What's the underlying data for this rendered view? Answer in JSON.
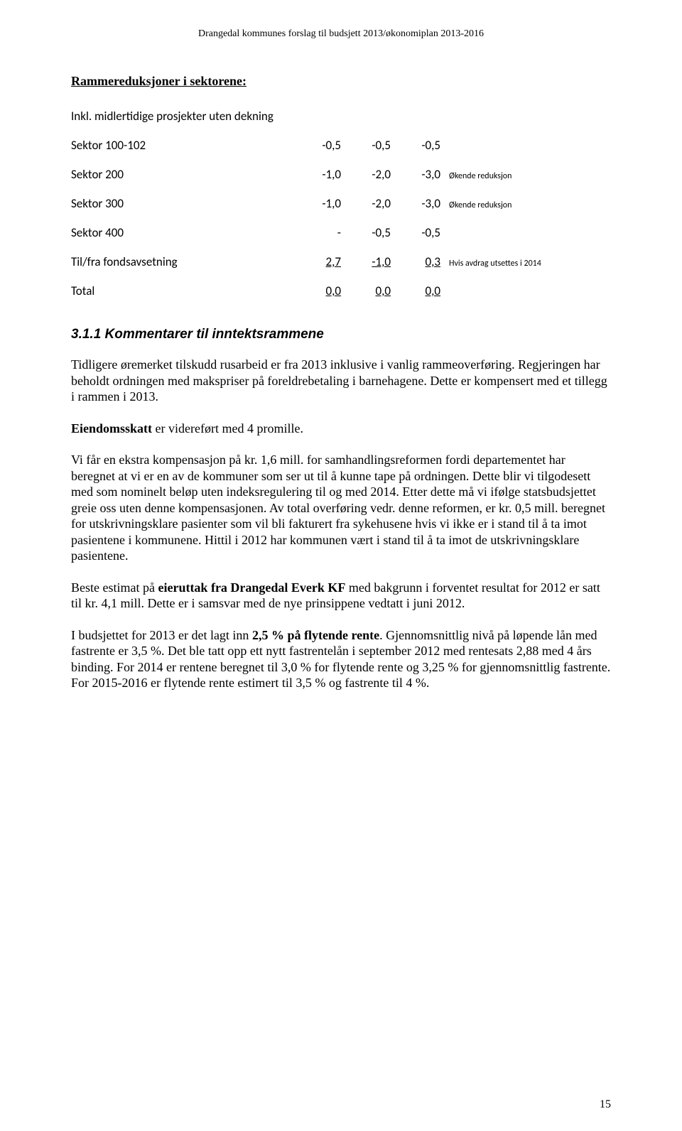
{
  "header": "Drangedal kommunes forslag til budsjett 2013/økonomiplan 2013-2016",
  "section_title": "Rammereduksjoner i sektorene:",
  "table": {
    "subtitle": "Inkl. midlertidige prosjekter uten dekning",
    "rows": [
      {
        "label": "Sektor 100-102",
        "c1": "-0,5",
        "c2": "-0,5",
        "c3": "-0,5",
        "note": ""
      },
      {
        "label": "Sektor 200",
        "c1": "-1,0",
        "c2": "-2,0",
        "c3": "-3,0",
        "note": "Økende reduksjon"
      },
      {
        "label": "Sektor 300",
        "c1": "-1,0",
        "c2": "-2,0",
        "c3": "-3,0",
        "note": "Økende reduksjon"
      },
      {
        "label": "Sektor 400",
        "c1": "-",
        "c2": "-0,5",
        "c3": "-0,5",
        "note": ""
      },
      {
        "label": "Til/fra fondsavsetning",
        "c1": "2,7",
        "c2": "-1,0",
        "c3": "0,3",
        "note": "Hvis avdrag utsettes i 2014",
        "underline": true
      },
      {
        "label": "Total",
        "c1": "0,0",
        "c2": "0,0",
        "c3": "0,0",
        "note": "",
        "underline": true
      }
    ]
  },
  "subsection_title": "3.1.1 Kommentarer til inntektsrammene",
  "paras": {
    "p1a": "Tidligere øremerket tilskudd rusarbeid er fra 2013 inklusive i vanlig rammeoverføring. Regjeringen har beholdt ordningen med makspriser på foreldrebetaling i barnehagene. Dette er kompensert med et tillegg i rammen i 2013.",
    "p2_bold": "Eiendomsskatt",
    "p2_rest": " er videreført med 4 promille.",
    "p3": "Vi får en ekstra kompensasjon på kr. 1,6 mill. for samhandlingsreformen fordi departementet har beregnet at vi er en av de kommuner som ser ut til å kunne tape på ordningen. Dette blir vi tilgodesett med som nominelt beløp uten indeksregulering til og med 2014. Etter dette må vi ifølge statsbudsjettet greie oss uten denne kompensasjonen. Av total overføring vedr. denne reformen, er kr. 0,5 mill. beregnet for utskrivningsklare pasienter som vil bli fakturert fra sykehusene hvis vi ikke er i stand til å ta imot pasientene i kommunene. Hittil i 2012 har kommunen vært i stand til å ta imot de utskrivningsklare pasientene.",
    "p4a": "Beste estimat på ",
    "p4_bold": "eieruttak fra Drangedal Everk KF",
    "p4b": " med bakgrunn i forventet resultat for 2012 er satt til kr. 4,1 mill. Dette er i samsvar med de nye prinsippene vedtatt i juni 2012.",
    "p5a": "I budsjettet for 2013 er det lagt inn ",
    "p5_bold": "2,5 % på flytende rente",
    "p5b": ". Gjennomsnittlig nivå på løpende lån med fastrente er 3,5 %. Det ble tatt opp ett nytt fastrentelån i september 2012 med rentesats 2,88 med 4 års binding. For 2014 er rentene beregnet til 3,0 % for flytende rente og 3,25 % for gjennomsnittlig fastrente. For 2015-2016 er flytende rente estimert til 3,5 % og fastrente til 4 %."
  },
  "page_number": "15"
}
